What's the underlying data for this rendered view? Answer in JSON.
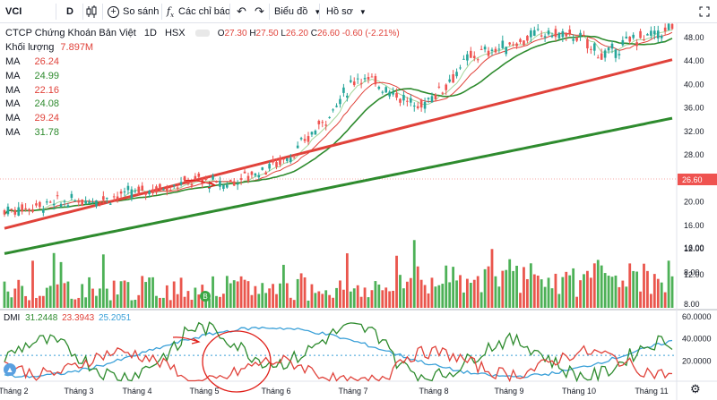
{
  "toolbar": {
    "symbol": "VCI",
    "interval": "D",
    "compare_label": "So sánh",
    "indicators_label": "Các chỉ báo",
    "chart_type_label": "Biểu đồ",
    "profile_label": "Hồ sơ"
  },
  "header": {
    "name": "CTCP Chứng Khoán Bản Việt",
    "interval": "1D",
    "exchange": "HSX",
    "ohlc": [
      {
        "label": "O",
        "value": "27.30"
      },
      {
        "label": "H",
        "value": "27.50"
      },
      {
        "label": "L",
        "value": "26.20"
      },
      {
        "label": "C",
        "value": "26.60"
      }
    ],
    "change": "-0.60 (-2.21%)",
    "volume_label": "Khối lượng",
    "volume_value": "7.897M"
  },
  "moving_averages": [
    {
      "label": "MA",
      "value": "26.24",
      "color": "#e0423a"
    },
    {
      "label": "MA",
      "value": "24.99",
      "color": "#2e8b2e"
    },
    {
      "label": "MA",
      "value": "22.16",
      "color": "#e0423a"
    },
    {
      "label": "MA",
      "value": "24.08",
      "color": "#2e8b2e"
    },
    {
      "label": "MA",
      "value": "29.24",
      "color": "#e0423a"
    },
    {
      "label": "MA",
      "value": "31.78",
      "color": "#2e8b2e"
    }
  ],
  "dmi": {
    "label": "DMI",
    "plus_di": "31.2448",
    "minus_di": "23.3943",
    "adx": "25.2051"
  },
  "price_axis": [
    "48.00",
    "44.00",
    "40.00",
    "36.00",
    "32.00",
    "28.00",
    "24.00",
    "20.00",
    "16.00",
    "12.00",
    "8.00"
  ],
  "last_price_tag": "26.60",
  "dmi_axis": [
    "60.0000",
    "40.0000",
    "20.0000"
  ],
  "time_axis": [
    "Tháng 2",
    "Tháng 3",
    "Tháng 4",
    "Tháng 5",
    "Tháng 6",
    "Tháng 7",
    "Tháng 8",
    "Tháng 9",
    "Tháng 10",
    "Tháng 11"
  ],
  "volume_marker": "B",
  "colors": {
    "up": "#26a69a",
    "down": "#ef5350",
    "vol_up": "#3aa845",
    "vol_down": "#e8443a",
    "ma_red": "#e0423a",
    "ma_green": "#2e8b2e",
    "adx": "#3aa0d8",
    "annotation": "#e0201a"
  }
}
